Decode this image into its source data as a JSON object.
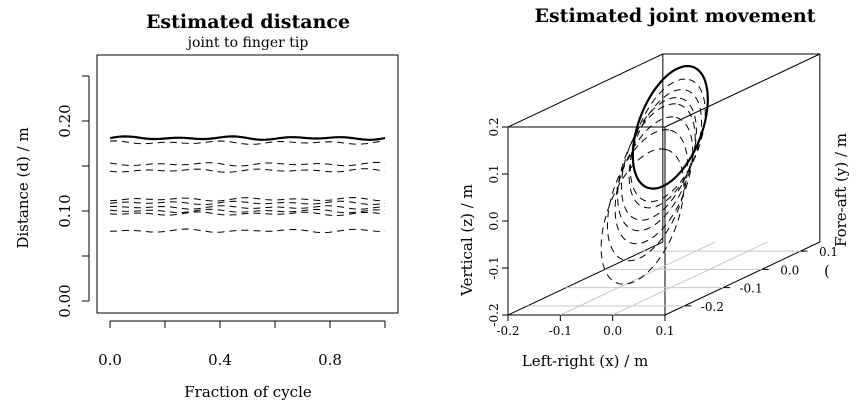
{
  "chart_data": [
    {
      "type": "line",
      "title": "Estimated distance",
      "subtitle": "joint to finger tip",
      "xlabel": "Fraction of cycle",
      "ylabel": "Distance (d) / m",
      "xlim": [
        0,
        1
      ],
      "ylim": [
        0,
        0.26
      ],
      "x_ticks": [
        "0.0",
        "0.4",
        "0.8"
      ],
      "y_ticks": [
        "0.00",
        "0.10",
        "0.20"
      ],
      "x_tick_values": [
        0,
        0.4,
        0.8
      ],
      "y_tick_values": [
        0,
        0.1,
        0.2
      ],
      "series": [
        {
          "style": "solid",
          "level": 0.181,
          "x": [
            0,
            0.1,
            0.2,
            0.3,
            0.4,
            0.5,
            0.6,
            0.7,
            0.8,
            0.9,
            1.0
          ],
          "y": [
            0.181,
            0.181,
            0.18,
            0.181,
            0.18,
            0.181,
            0.18,
            0.181,
            0.18,
            0.181,
            0.18
          ]
        },
        {
          "style": "dashed",
          "level": 0.176,
          "x": [
            0,
            0.1,
            0.2,
            0.3,
            0.4,
            0.5,
            0.6,
            0.7,
            0.8,
            0.9,
            1.0
          ],
          "y": [
            0.176,
            0.176,
            0.175,
            0.176,
            0.176,
            0.175,
            0.176,
            0.176,
            0.175,
            0.176,
            0.176
          ]
        },
        {
          "style": "dashed",
          "level": 0.152,
          "x": [
            0,
            0.1,
            0.2,
            0.3,
            0.4,
            0.5,
            0.6,
            0.7,
            0.8,
            0.9,
            1.0
          ],
          "y": [
            0.152,
            0.153,
            0.151,
            0.152,
            0.153,
            0.151,
            0.152,
            0.153,
            0.151,
            0.152,
            0.152
          ]
        },
        {
          "style": "dashed",
          "level": 0.145,
          "x": [
            0,
            0.1,
            0.2,
            0.3,
            0.4,
            0.5,
            0.6,
            0.7,
            0.8,
            0.9,
            1.0
          ],
          "y": [
            0.145,
            0.144,
            0.146,
            0.145,
            0.144,
            0.146,
            0.145,
            0.144,
            0.146,
            0.145,
            0.145
          ]
        },
        {
          "style": "dashed",
          "level": 0.113,
          "x": [
            0,
            0.1,
            0.2,
            0.3,
            0.4,
            0.5,
            0.6,
            0.7,
            0.8,
            0.9,
            1.0
          ],
          "y": [
            0.113,
            0.112,
            0.114,
            0.113,
            0.112,
            0.114,
            0.113,
            0.112,
            0.114,
            0.113,
            0.113
          ]
        },
        {
          "style": "dashed",
          "level": 0.109,
          "x": [
            0,
            0.1,
            0.2,
            0.3,
            0.4,
            0.5,
            0.6,
            0.7,
            0.8,
            0.9,
            1.0
          ],
          "y": [
            0.109,
            0.11,
            0.108,
            0.109,
            0.11,
            0.108,
            0.109,
            0.11,
            0.108,
            0.109,
            0.109
          ]
        },
        {
          "style": "dashed",
          "level": 0.104,
          "x": [
            0,
            0.1,
            0.2,
            0.3,
            0.4,
            0.5,
            0.6,
            0.7,
            0.8,
            0.9,
            1.0
          ],
          "y": [
            0.104,
            0.103,
            0.105,
            0.104,
            0.103,
            0.105,
            0.104,
            0.103,
            0.105,
            0.104,
            0.104
          ]
        },
        {
          "style": "dashed",
          "level": 0.1,
          "x": [
            0,
            0.1,
            0.2,
            0.3,
            0.4,
            0.5,
            0.6,
            0.7,
            0.8,
            0.9,
            1.0
          ],
          "y": [
            0.1,
            0.101,
            0.099,
            0.1,
            0.101,
            0.099,
            0.1,
            0.101,
            0.099,
            0.1,
            0.1
          ]
        },
        {
          "style": "dashed",
          "level": 0.097,
          "x": [
            0,
            0.1,
            0.2,
            0.3,
            0.4,
            0.5,
            0.6,
            0.7,
            0.8,
            0.9,
            1.0
          ],
          "y": [
            0.097,
            0.096,
            0.098,
            0.097,
            0.096,
            0.098,
            0.097,
            0.096,
            0.098,
            0.097,
            0.097
          ]
        },
        {
          "style": "dashed",
          "level": 0.078,
          "x": [
            0,
            0.1,
            0.2,
            0.3,
            0.4,
            0.5,
            0.6,
            0.7,
            0.8,
            0.9,
            1.0
          ],
          "y": [
            0.078,
            0.076,
            0.08,
            0.078,
            0.075,
            0.079,
            0.077,
            0.075,
            0.079,
            0.077,
            0.076
          ]
        }
      ],
      "grid": false,
      "legend": "none"
    },
    {
      "type": "line",
      "title": "Estimated joint movement",
      "projection": "3d",
      "xlabel": "Left-right (x) / m",
      "ylabel": "Fore-aft (y) / m",
      "zlabel": "Vertical (z) / m",
      "xlim": [
        -0.2,
        0.1
      ],
      "ylim": [
        -0.25,
        0.15
      ],
      "zlim": [
        -0.2,
        0.2
      ],
      "x_ticks": [
        "-0.2",
        "-0.1",
        "0.0",
        "0.1"
      ],
      "y_ticks": [
        "-0.2",
        "-0.1",
        "0.0",
        "0.1"
      ],
      "z_ticks": [
        "-0.2",
        "-0.1",
        "0.0",
        "0.1",
        "0.2"
      ],
      "right_margin_label": "Fore-aft (y) / m",
      "right_margin_tick_fragment": "(",
      "loops": [
        {
          "style": "solid",
          "cx": -0.06,
          "cy": -0.02,
          "cz": 0.11,
          "r": 0.145
        },
        {
          "style": "dashed",
          "cx": -0.05,
          "cy": -0.04,
          "cz": 0.09,
          "r": 0.145
        },
        {
          "style": "dashed",
          "cx": -0.04,
          "cy": -0.06,
          "cz": 0.08,
          "r": 0.14
        },
        {
          "style": "dashed",
          "cx": -0.03,
          "cy": -0.09,
          "cz": 0.07,
          "r": 0.145
        },
        {
          "style": "dashed",
          "cx": -0.02,
          "cy": -0.11,
          "cz": 0.06,
          "r": 0.15
        },
        {
          "style": "dashed",
          "cx": -0.01,
          "cy": -0.13,
          "cz": 0.04,
          "r": 0.15
        },
        {
          "style": "dashed",
          "cx": 0.0,
          "cy": -0.16,
          "cz": 0.02,
          "r": 0.155
        },
        {
          "style": "dashed",
          "cx": 0.02,
          "cy": -0.2,
          "cz": -0.01,
          "r": 0.16
        }
      ],
      "grid": true,
      "legend": "none"
    }
  ]
}
